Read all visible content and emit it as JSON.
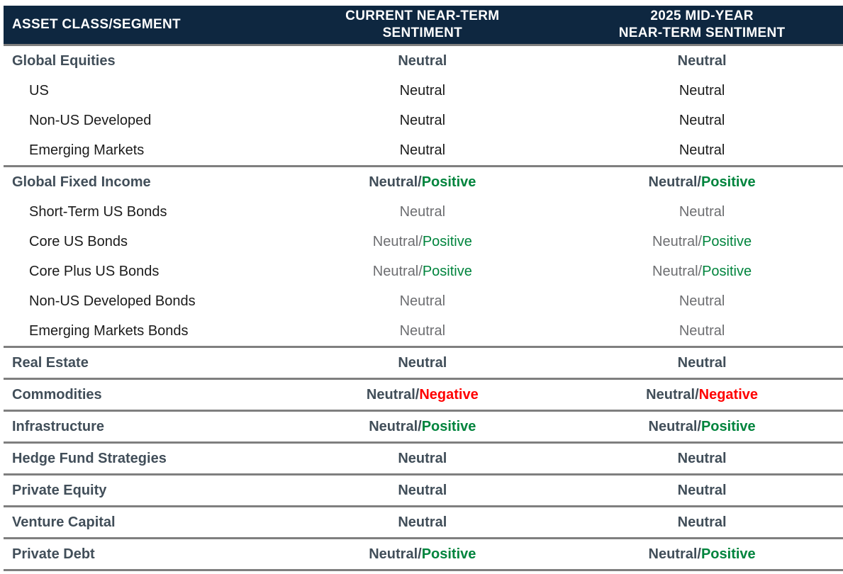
{
  "colors": {
    "header_bg": "#0e2740",
    "header_text": "#ffffff",
    "divider": "#7f7f7f",
    "section_text": "#414e59",
    "sub_text": "#1b1b1b",
    "muted_text": "#6d6e71",
    "positive": "#00843d",
    "negative": "#ff0000"
  },
  "header": {
    "col_asset": "ASSET CLASS/SEGMENT",
    "col_current": "CURRENT NEAR-TERM\nSENTIMENT",
    "col_midyear": "2025 MID-YEAR\nNEAR-TERM SENTIMENT"
  },
  "sections": [
    {
      "rows": [
        {
          "label": "Global Equities",
          "kind": "section",
          "current": [
            {
              "t": "Neutral",
              "tone": "strong"
            }
          ],
          "midyear": [
            {
              "t": "Neutral",
              "tone": "strong"
            }
          ]
        },
        {
          "label": "US",
          "kind": "sub",
          "current": [
            {
              "t": "Neutral",
              "tone": "plain"
            }
          ],
          "midyear": [
            {
              "t": "Neutral",
              "tone": "plain"
            }
          ]
        },
        {
          "label": "Non-US Developed",
          "kind": "sub",
          "current": [
            {
              "t": "Neutral",
              "tone": "plain"
            }
          ],
          "midyear": [
            {
              "t": "Neutral",
              "tone": "plain"
            }
          ]
        },
        {
          "label": "Emerging Markets",
          "kind": "sub",
          "current": [
            {
              "t": "Neutral",
              "tone": "plain"
            }
          ],
          "midyear": [
            {
              "t": "Neutral",
              "tone": "plain"
            }
          ]
        }
      ]
    },
    {
      "rows": [
        {
          "label": "Global Fixed Income",
          "kind": "section",
          "current": [
            {
              "t": "Neutral/",
              "tone": "strong"
            },
            {
              "t": "Positive",
              "tone": "positive"
            }
          ],
          "midyear": [
            {
              "t": "Neutral/",
              "tone": "strong"
            },
            {
              "t": "Positive",
              "tone": "positive"
            }
          ]
        },
        {
          "label": "Short-Term US Bonds",
          "kind": "sub",
          "current": [
            {
              "t": "Neutral",
              "tone": "muted"
            }
          ],
          "midyear": [
            {
              "t": "Neutral",
              "tone": "muted"
            }
          ]
        },
        {
          "label": "Core US Bonds",
          "kind": "sub",
          "current": [
            {
              "t": "Neutral/",
              "tone": "muted"
            },
            {
              "t": "Positive",
              "tone": "positive"
            }
          ],
          "midyear": [
            {
              "t": "Neutral/",
              "tone": "muted"
            },
            {
              "t": "Positive",
              "tone": "positive"
            }
          ]
        },
        {
          "label": "Core Plus US Bonds",
          "kind": "sub",
          "current": [
            {
              "t": "Neutral/",
              "tone": "muted"
            },
            {
              "t": "Positive",
              "tone": "positive"
            }
          ],
          "midyear": [
            {
              "t": "Neutral/",
              "tone": "muted"
            },
            {
              "t": "Positive",
              "tone": "positive"
            }
          ]
        },
        {
          "label": "Non-US Developed Bonds",
          "kind": "sub",
          "current": [
            {
              "t": "Neutral",
              "tone": "muted"
            }
          ],
          "midyear": [
            {
              "t": "Neutral",
              "tone": "muted"
            }
          ]
        },
        {
          "label": "Emerging Markets Bonds",
          "kind": "sub",
          "current": [
            {
              "t": "Neutral",
              "tone": "muted"
            }
          ],
          "midyear": [
            {
              "t": "Neutral",
              "tone": "muted"
            }
          ]
        }
      ]
    },
    {
      "rows": [
        {
          "label": "Real Estate",
          "kind": "section",
          "current": [
            {
              "t": "Neutral",
              "tone": "strong"
            }
          ],
          "midyear": [
            {
              "t": "Neutral",
              "tone": "strong"
            }
          ]
        }
      ]
    },
    {
      "rows": [
        {
          "label": "Commodities",
          "kind": "section",
          "current": [
            {
              "t": "Neutral/",
              "tone": "strong"
            },
            {
              "t": "Negative",
              "tone": "negative"
            }
          ],
          "midyear": [
            {
              "t": "Neutral/",
              "tone": "strong"
            },
            {
              "t": "Negative",
              "tone": "negative"
            }
          ]
        }
      ]
    },
    {
      "rows": [
        {
          "label": "Infrastructure",
          "kind": "section",
          "current": [
            {
              "t": "Neutral/",
              "tone": "strong"
            },
            {
              "t": "Positive",
              "tone": "positive"
            }
          ],
          "midyear": [
            {
              "t": "Neutral/",
              "tone": "strong"
            },
            {
              "t": "Positive",
              "tone": "positive"
            }
          ]
        }
      ]
    },
    {
      "rows": [
        {
          "label": "Hedge Fund Strategies",
          "kind": "section",
          "current": [
            {
              "t": "Neutral",
              "tone": "strong"
            }
          ],
          "midyear": [
            {
              "t": "Neutral",
              "tone": "strong"
            }
          ]
        }
      ]
    },
    {
      "rows": [
        {
          "label": "Private Equity",
          "kind": "section",
          "current": [
            {
              "t": "Neutral",
              "tone": "strong"
            }
          ],
          "midyear": [
            {
              "t": "Neutral",
              "tone": "strong"
            }
          ]
        }
      ]
    },
    {
      "rows": [
        {
          "label": "Venture Capital",
          "kind": "section",
          "current": [
            {
              "t": "Neutral",
              "tone": "strong"
            }
          ],
          "midyear": [
            {
              "t": "Neutral",
              "tone": "strong"
            }
          ]
        }
      ]
    },
    {
      "rows": [
        {
          "label": "Private Debt",
          "kind": "section",
          "current": [
            {
              "t": "Neutral/",
              "tone": "strong"
            },
            {
              "t": "Positive",
              "tone": "positive"
            }
          ],
          "midyear": [
            {
              "t": "Neutral/",
              "tone": "strong"
            },
            {
              "t": "Positive",
              "tone": "positive"
            }
          ]
        }
      ]
    }
  ]
}
